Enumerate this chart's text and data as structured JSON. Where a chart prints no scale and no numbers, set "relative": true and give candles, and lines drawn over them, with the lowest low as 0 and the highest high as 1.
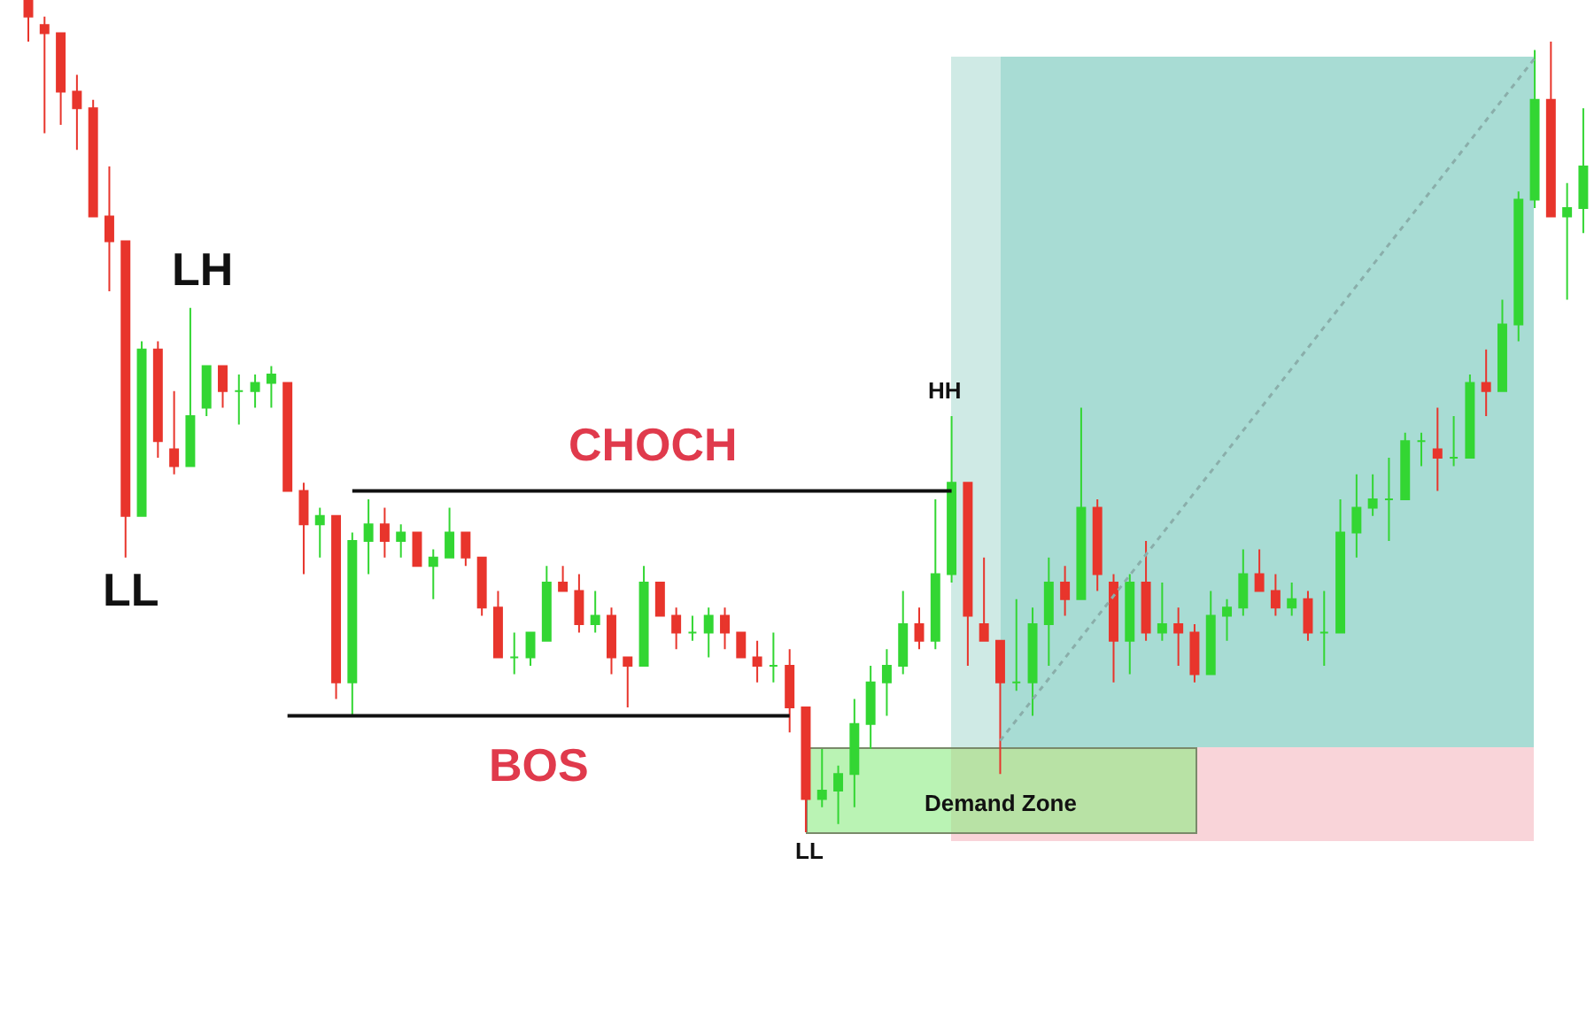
{
  "chart_data": {
    "type": "candlestick",
    "relative": true,
    "categories": [
      null,
      null,
      null,
      null,
      null,
      null,
      null,
      null,
      null,
      null,
      null,
      null,
      null,
      null,
      null,
      null,
      null,
      null,
      null,
      null,
      null,
      null,
      null,
      null,
      null,
      null,
      null,
      null,
      null,
      null,
      null,
      null,
      null,
      null,
      null,
      null,
      null,
      null,
      null,
      null,
      null,
      null,
      null,
      null,
      null,
      null,
      null,
      null,
      null,
      null,
      null,
      null,
      null,
      null,
      null,
      null,
      null,
      null,
      null,
      null,
      null,
      null,
      null,
      null,
      null,
      null,
      null,
      null,
      null,
      null,
      null,
      null,
      null,
      null,
      null,
      null,
      null,
      null,
      null,
      null,
      null,
      null,
      null,
      null,
      null,
      null,
      null,
      null,
      null,
      null,
      null,
      null,
      null,
      null,
      null,
      null,
      null
    ],
    "ohlc": [
      [
        1.0,
        1.0,
        0.95,
        0.98
      ],
      [
        0.97,
        0.98,
        0.84,
        0.96
      ],
      [
        0.96,
        0.96,
        0.85,
        0.89
      ],
      [
        0.89,
        0.91,
        0.82,
        0.87
      ],
      [
        0.87,
        0.88,
        0.74,
        0.74
      ],
      [
        0.74,
        0.8,
        0.65,
        0.71
      ],
      [
        0.71,
        0.71,
        0.33,
        0.38
      ],
      [
        0.38,
        0.59,
        0.38,
        0.58
      ],
      [
        0.58,
        0.59,
        0.45,
        0.47
      ],
      [
        0.46,
        0.53,
        0.43,
        0.44
      ],
      [
        0.44,
        0.63,
        0.44,
        0.5
      ],
      [
        0.51,
        0.56,
        0.5,
        0.56
      ],
      [
        0.56,
        0.56,
        0.51,
        0.53
      ],
      [
        0.53,
        0.55,
        0.49,
        0.53
      ],
      [
        0.53,
        0.55,
        0.51,
        0.54
      ],
      [
        0.54,
        0.56,
        0.51,
        0.55
      ],
      [
        0.54,
        0.54,
        0.41,
        0.41
      ],
      [
        0.41,
        0.42,
        0.31,
        0.37
      ],
      [
        0.37,
        0.39,
        0.33,
        0.38
      ],
      [
        0.38,
        0.38,
        0.16,
        0.18
      ],
      [
        0.18,
        0.36,
        0.14,
        0.35
      ],
      [
        0.35,
        0.4,
        0.31,
        0.37
      ],
      [
        0.37,
        0.39,
        0.33,
        0.35
      ],
      [
        0.35,
        0.37,
        0.33,
        0.36
      ],
      [
        0.36,
        0.36,
        0.32,
        0.32
      ],
      [
        0.32,
        0.34,
        0.28,
        0.33
      ],
      [
        0.33,
        0.39,
        0.33,
        0.36
      ],
      [
        0.36,
        0.36,
        0.32,
        0.33
      ],
      [
        0.33,
        0.33,
        0.26,
        0.27
      ],
      [
        0.27,
        0.29,
        0.21,
        0.21
      ],
      [
        0.21,
        0.24,
        0.19,
        0.21
      ],
      [
        0.21,
        0.24,
        0.2,
        0.24
      ],
      [
        0.23,
        0.32,
        0.23,
        0.3
      ],
      [
        0.3,
        0.32,
        0.29,
        0.29
      ],
      [
        0.29,
        0.31,
        0.24,
        0.25
      ],
      [
        0.25,
        0.29,
        0.24,
        0.26
      ],
      [
        0.26,
        0.27,
        0.19,
        0.21
      ],
      [
        0.21,
        0.21,
        0.15,
        0.2
      ],
      [
        0.2,
        0.32,
        0.2,
        0.3
      ],
      [
        0.3,
        0.3,
        0.26,
        0.26
      ],
      [
        0.26,
        0.27,
        0.22,
        0.24
      ],
      [
        0.24,
        0.26,
        0.23,
        0.24
      ],
      [
        0.24,
        0.27,
        0.21,
        0.26
      ],
      [
        0.26,
        0.27,
        0.22,
        0.24
      ],
      [
        0.24,
        0.24,
        0.21,
        0.21
      ],
      [
        0.21,
        0.23,
        0.18,
        0.2
      ],
      [
        0.2,
        0.24,
        0.18,
        0.2
      ],
      [
        0.2,
        0.22,
        0.12,
        0.15
      ],
      [
        0.15,
        0.15,
        0.0,
        0.04
      ],
      [
        0.04,
        0.1,
        0.03,
        0.05
      ],
      [
        0.05,
        0.08,
        0.01,
        0.07
      ],
      [
        0.07,
        0.16,
        0.03,
        0.13
      ],
      [
        0.13,
        0.2,
        0.1,
        0.18
      ],
      [
        0.18,
        0.22,
        0.14,
        0.2
      ],
      [
        0.2,
        0.29,
        0.19,
        0.25
      ],
      [
        0.25,
        0.27,
        0.22,
        0.23
      ],
      [
        0.23,
        0.4,
        0.22,
        0.31
      ],
      [
        0.31,
        0.5,
        0.3,
        0.42
      ],
      [
        0.42,
        0.42,
        0.2,
        0.26
      ],
      [
        0.25,
        0.33,
        0.23,
        0.23
      ],
      [
        0.23,
        0.23,
        0.07,
        0.18
      ],
      [
        0.18,
        0.28,
        0.17,
        0.18
      ],
      [
        0.18,
        0.27,
        0.14,
        0.25
      ],
      [
        0.25,
        0.33,
        0.2,
        0.3
      ],
      [
        0.3,
        0.32,
        0.26,
        0.28
      ],
      [
        0.28,
        0.51,
        0.28,
        0.39
      ],
      [
        0.39,
        0.4,
        0.29,
        0.31
      ],
      [
        0.3,
        0.31,
        0.18,
        0.23
      ],
      [
        0.23,
        0.31,
        0.19,
        0.3
      ],
      [
        0.3,
        0.35,
        0.23,
        0.24
      ],
      [
        0.24,
        0.3,
        0.23,
        0.25
      ],
      [
        0.25,
        0.27,
        0.2,
        0.24
      ],
      [
        0.24,
        0.25,
        0.18,
        0.19
      ],
      [
        0.19,
        0.29,
        0.19,
        0.26
      ],
      [
        0.26,
        0.28,
        0.23,
        0.27
      ],
      [
        0.27,
        0.34,
        0.26,
        0.31
      ],
      [
        0.31,
        0.34,
        0.29,
        0.29
      ],
      [
        0.29,
        0.31,
        0.26,
        0.27
      ],
      [
        0.27,
        0.3,
        0.26,
        0.28
      ],
      [
        0.28,
        0.29,
        0.23,
        0.24
      ],
      [
        0.24,
        0.29,
        0.2,
        0.24
      ],
      [
        0.24,
        0.4,
        0.24,
        0.36
      ],
      [
        0.36,
        0.43,
        0.33,
        0.39
      ],
      [
        0.39,
        0.43,
        0.38,
        0.4
      ],
      [
        0.4,
        0.45,
        0.35,
        0.4
      ],
      [
        0.4,
        0.48,
        0.4,
        0.47
      ],
      [
        0.47,
        0.48,
        0.44,
        0.47
      ],
      [
        0.46,
        0.51,
        0.41,
        0.45
      ],
      [
        0.45,
        0.5,
        0.44,
        0.45
      ],
      [
        0.45,
        0.55,
        0.45,
        0.54
      ],
      [
        0.54,
        0.58,
        0.5,
        0.53
      ],
      [
        0.53,
        0.64,
        0.53,
        0.61
      ],
      [
        0.61,
        0.77,
        0.59,
        0.76
      ],
      [
        0.76,
        0.94,
        0.75,
        0.88
      ],
      [
        0.88,
        0.95,
        0.74,
        0.74
      ],
      [
        0.74,
        0.78,
        0.64,
        0.75
      ],
      [
        0.75,
        0.87,
        0.72,
        0.8
      ]
    ],
    "colors": [
      "#e8352c",
      "#e8352c",
      "#e8352c",
      "#e8352c",
      "#e8352c",
      "#e8352c",
      "#e8352c",
      "#33d633",
      "#e8352c",
      "#e8352c",
      "#33d633",
      "#33d633",
      "#e8352c",
      "#33d633",
      "#33d633",
      "#33d633",
      "#e8352c",
      "#e8352c",
      "#33d633",
      "#e8352c",
      "#33d633",
      "#33d633",
      "#e8352c",
      "#33d633",
      "#e8352c",
      "#33d633",
      "#33d633",
      "#e8352c",
      "#e8352c",
      "#e8352c",
      "#33d633",
      "#33d633",
      "#33d633",
      "#e8352c",
      "#e8352c",
      "#33d633",
      "#e8352c",
      "#e8352c",
      "#33d633",
      "#e8352c",
      "#e8352c",
      "#33d633",
      "#33d633",
      "#e8352c",
      "#e8352c",
      "#e8352c",
      "#33d633",
      "#e8352c",
      "#e8352c",
      "#33d633",
      "#33d633",
      "#33d633",
      "#33d633",
      "#33d633",
      "#33d633",
      "#e8352c",
      "#33d633",
      "#33d633",
      "#e8352c",
      "#e8352c",
      "#e8352c",
      "#33d633",
      "#33d633",
      "#33d633",
      "#e8352c",
      "#33d633",
      "#e8352c",
      "#e8352c",
      "#33d633",
      "#e8352c",
      "#33d633",
      "#e8352c",
      "#e8352c",
      "#33d633",
      "#33d633",
      "#33d633",
      "#e8352c",
      "#e8352c",
      "#33d633",
      "#e8352c",
      "#33d633",
      "#33d633",
      "#33d633",
      "#33d633",
      "#33d633",
      "#33d633",
      "#33d633",
      "#e8352c",
      "#33d633",
      "#33d633",
      "#e8352c",
      "#33d633",
      "#33d633",
      "#33d633",
      "#e8352c",
      "#33d633",
      "#33d633"
    ],
    "series": [
      {
        "type": "line",
        "name": "CHOCH",
        "color": "#111111",
        "values": [
          null,
          null,
          null,
          null,
          null,
          null,
          null,
          null,
          null,
          null,
          null,
          null,
          null,
          null,
          null,
          null,
          null,
          null,
          null,
          null,
          0.41,
          0.41,
          0.41,
          0.41,
          0.41,
          0.41,
          0.41,
          0.41,
          0.41,
          0.41,
          0.41,
          0.41,
          0.41,
          0.41,
          0.41,
          0.41,
          0.41,
          0.41,
          0.41,
          0.41,
          0.41,
          0.41,
          0.41,
          0.41,
          0.41,
          0.41,
          0.41,
          0.41,
          0.41,
          0.41,
          0.41,
          0.41,
          0.41,
          0.41,
          0.41,
          0.41,
          0.41,
          0.41,
          null,
          null,
          null,
          null,
          null,
          null,
          null,
          null,
          null,
          null,
          null,
          null,
          null,
          null,
          null,
          null,
          null,
          null,
          null,
          null,
          null,
          null,
          null,
          null,
          null,
          null,
          null,
          null,
          null,
          null,
          null,
          null,
          null,
          null,
          null,
          null,
          null,
          null,
          null
        ]
      },
      {
        "type": "line",
        "name": "BOS",
        "color": "#111111",
        "values": [
          null,
          null,
          null,
          null,
          null,
          null,
          null,
          null,
          null,
          null,
          null,
          null,
          null,
          null,
          null,
          null,
          0.14,
          0.14,
          0.14,
          0.14,
          0.14,
          0.14,
          0.14,
          0.14,
          0.14,
          0.14,
          0.14,
          0.14,
          0.14,
          0.14,
          0.14,
          0.14,
          0.14,
          0.14,
          0.14,
          0.14,
          0.14,
          0.14,
          0.14,
          0.14,
          0.14,
          0.14,
          0.14,
          0.14,
          0.14,
          0.14,
          0.14,
          0.14,
          null,
          null,
          null,
          null,
          null,
          null,
          null,
          null,
          null,
          null,
          null,
          null,
          null,
          null,
          null,
          null,
          null,
          null,
          null,
          null,
          null,
          null,
          null,
          null,
          null,
          null,
          null,
          null,
          null,
          null,
          null,
          null,
          null,
          null,
          null,
          null,
          null,
          null,
          null,
          null,
          null,
          null,
          null,
          null,
          null,
          null,
          null,
          null,
          null
        ]
      },
      {
        "type": "line",
        "color": "#8aaeaa",
        "line_style": "dotted",
        "values": [
          null,
          null,
          null,
          null,
          null,
          null,
          null,
          null,
          null,
          null,
          null,
          null,
          null,
          null,
          null,
          null,
          null,
          null,
          null,
          null,
          null,
          null,
          null,
          null,
          null,
          null,
          null,
          null,
          null,
          null,
          null,
          null,
          null,
          null,
          null,
          null,
          null,
          null,
          null,
          null,
          null,
          null,
          null,
          null,
          null,
          null,
          null,
          null,
          null,
          null,
          null,
          null,
          null,
          null,
          null,
          null,
          null,
          null,
          null,
          null,
          0.11,
          null,
          null,
          null,
          null,
          null,
          null,
          null,
          null,
          null,
          null,
          null,
          null,
          null,
          null,
          null,
          null,
          null,
          null,
          null,
          null,
          null,
          null,
          null,
          null,
          null,
          null,
          null,
          null,
          null,
          null,
          null,
          null,
          0.93,
          null,
          null,
          null
        ]
      }
    ],
    "annotations": [
      "LH",
      "LL",
      "HH",
      "LL",
      "Demand Zone"
    ]
  }
}
